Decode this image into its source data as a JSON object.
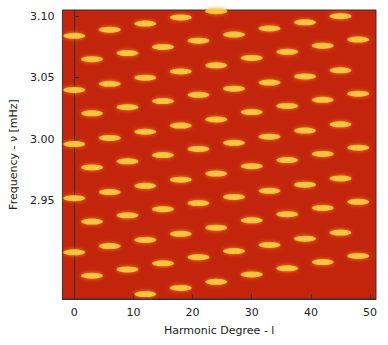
{
  "chart_data": {
    "type": "scatter",
    "x_label": "Harmonic Degree - l",
    "y_label": "Frequency - ν [mHz]",
    "x": [
      12,
      18,
      24,
      30,
      36,
      42,
      48,
      3,
      9,
      15,
      21,
      27,
      33,
      39,
      45,
      0,
      6,
      12,
      18,
      24,
      30,
      36,
      42,
      48,
      3,
      9,
      15,
      21,
      27,
      33,
      39,
      45,
      0,
      6,
      12,
      18,
      24,
      30,
      36,
      42,
      48,
      3,
      9,
      15,
      21,
      27,
      33,
      39,
      45,
      0,
      6,
      12,
      18,
      24,
      30,
      36,
      42,
      48,
      3,
      9,
      15,
      21,
      27,
      33,
      39,
      45,
      0,
      6,
      12,
      18,
      24,
      30,
      36,
      42,
      48,
      3,
      9,
      15,
      21,
      27,
      33,
      39,
      45,
      0,
      6,
      12,
      18,
      24
    ],
    "values": [
      2.874,
      2.879,
      2.884,
      2.89,
      2.895,
      2.9,
      2.905,
      2.889,
      2.894,
      2.899,
      2.904,
      2.909,
      2.914,
      2.919,
      2.924,
      2.908,
      2.913,
      2.918,
      2.923,
      2.928,
      2.934,
      2.939,
      2.944,
      2.949,
      2.933,
      2.938,
      2.943,
      2.948,
      2.953,
      2.958,
      2.963,
      2.968,
      2.952,
      2.957,
      2.962,
      2.967,
      2.972,
      2.978,
      2.983,
      2.988,
      2.993,
      2.977,
      2.982,
      2.987,
      2.992,
      2.997,
      3.002,
      3.007,
      3.012,
      2.996,
      3.001,
      3.006,
      3.011,
      3.016,
      3.022,
      3.027,
      3.032,
      3.037,
      3.021,
      3.026,
      3.031,
      3.036,
      3.041,
      3.046,
      3.051,
      3.056,
      3.04,
      3.045,
      3.05,
      3.055,
      3.06,
      3.066,
      3.071,
      3.076,
      3.081,
      3.065,
      3.07,
      3.075,
      3.08,
      3.085,
      3.09,
      3.095,
      3.1,
      3.084,
      3.089,
      3.094,
      3.099,
      3.104
    ],
    "color": "#ffd84a",
    "marker": "ellipse",
    "xlim": [
      -2,
      51
    ],
    "xticks": [
      0,
      10,
      20,
      30,
      40,
      50
    ],
    "ylim": [
      2.87,
      3.105
    ],
    "yticks": [
      2.95,
      {
        "value": 3,
        "label": "3.00"
      },
      3.05,
      {
        "value": 3.1,
        "label": "3.10"
      }
    ],
    "grid": false
  }
}
